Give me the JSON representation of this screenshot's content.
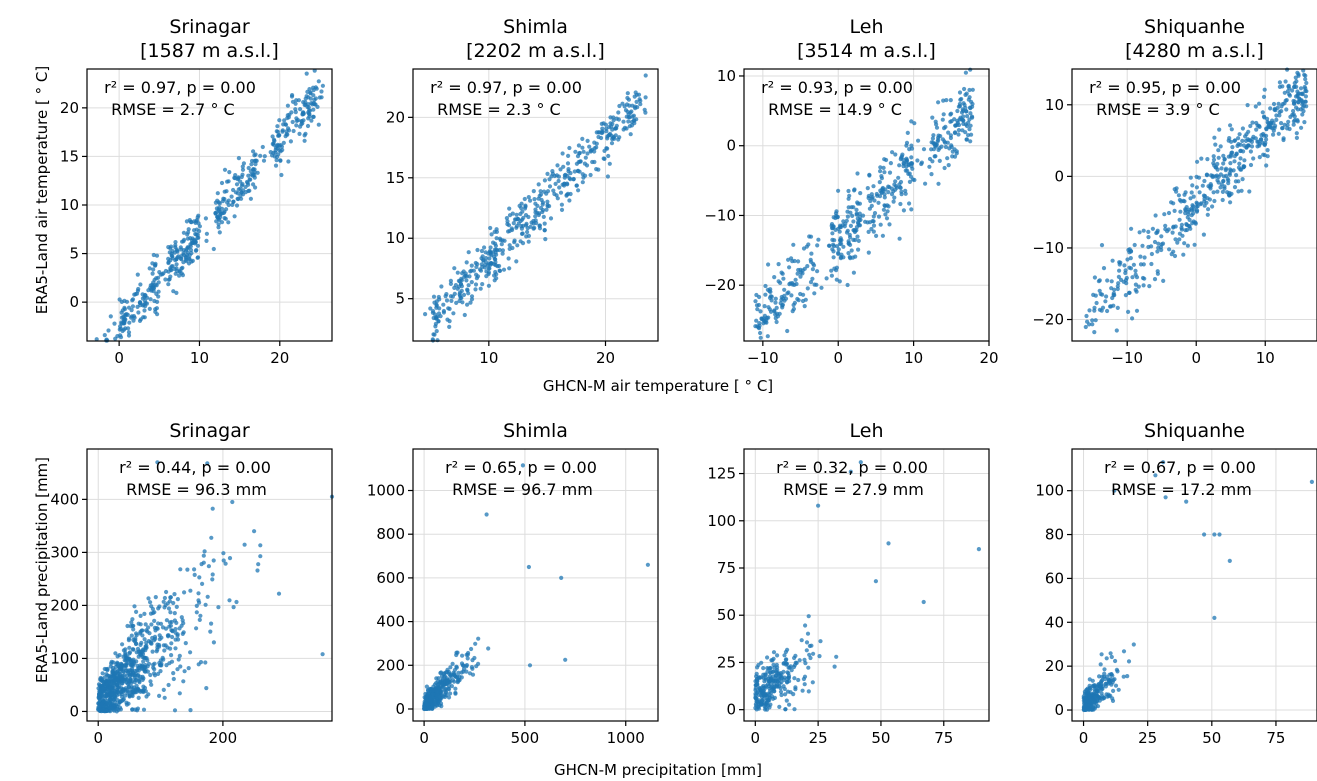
{
  "figure": {
    "temp_xlabel": "GHCN-M air temperature [ ° C]",
    "temp_ylabel": "ERA5-Land air temperature [ ° C]",
    "precip_xlabel": "GHCN-M precipitation [mm]",
    "precip_ylabel": "ERA5-Land precipitation [mm]",
    "marker_color": "#1f77b4",
    "grid": true
  },
  "chart_data": [
    {
      "type": "scatter",
      "row": "temperature",
      "title": "Srinagar",
      "subtitle": "[1587 m a.s.l.]",
      "stat_line1": "r² = 0.97, p = 0.00",
      "stat_line2": "RMSE = 2.7 ° C",
      "xlim": [
        -4,
        26.5
      ],
      "ylim": [
        -4,
        24
      ],
      "xticks": [
        0,
        10,
        20
      ],
      "yticks": [
        0,
        5,
        10,
        15,
        20
      ],
      "trend": {
        "x": [
          -3,
          25.5
        ],
        "slope": 0.95,
        "intercept": -2.4,
        "noise": 1.3,
        "n": 520,
        "clusters": [
          [
            0,
            5
          ],
          [
            6,
            10
          ],
          [
            12,
            17
          ],
          [
            19,
            25
          ]
        ]
      }
    },
    {
      "type": "scatter",
      "row": "temperature",
      "title": "Shimla",
      "subtitle": "[2202 m a.s.l.]",
      "stat_line1": "r² = 0.97, p = 0.00",
      "stat_line2": "RMSE = 2.3 ° C",
      "xlim": [
        3.5,
        24.5
      ],
      "ylim": [
        1.5,
        24
      ],
      "xticks": [
        10,
        20
      ],
      "yticks": [
        5,
        10,
        15,
        20
      ],
      "trend": {
        "x": [
          4.5,
          23.5
        ],
        "slope": 1.0,
        "intercept": -1.8,
        "noise": 1.1,
        "n": 480,
        "clusters": [
          [
            5,
            9
          ],
          [
            9,
            13
          ],
          [
            13,
            17
          ],
          [
            17,
            23
          ]
        ]
      }
    },
    {
      "type": "scatter",
      "row": "temperature",
      "title": "Leh",
      "subtitle": "[3514 m a.s.l.]",
      "stat_line1": "r² = 0.93, p = 0.00",
      "stat_line2": "RMSE = 14.9 ° C",
      "xlim": [
        -12.5,
        20
      ],
      "ylim": [
        -28,
        11
      ],
      "xticks": [
        -10,
        0,
        10,
        20
      ],
      "yticks": [
        -20,
        -10,
        0,
        10
      ],
      "trend": {
        "x": [
          -11,
          18
        ],
        "slope": 1.08,
        "intercept": -13.5,
        "noise": 2.6,
        "n": 520,
        "clusters": [
          [
            -11,
            -3
          ],
          [
            -1,
            3
          ],
          [
            4,
            10
          ],
          [
            12,
            18
          ]
        ]
      }
    },
    {
      "type": "scatter",
      "row": "temperature",
      "title": "Shiquanhe",
      "subtitle": "[4280 m a.s.l.]",
      "stat_line1": "r² = 0.95, p = 0.00",
      "stat_line2": "RMSE = 3.9 ° C",
      "xlim": [
        -18,
        17.5
      ],
      "ylim": [
        -23,
        15
      ],
      "xticks": [
        -10,
        0,
        10
      ],
      "yticks": [
        -20,
        -10,
        0,
        10
      ],
      "trend": {
        "x": [
          -16,
          16
        ],
        "slope": 1.02,
        "intercept": -3.6,
        "noise": 2.4,
        "n": 520,
        "clusters": [
          [
            -15,
            -4
          ],
          [
            -4,
            4
          ],
          [
            4,
            10
          ],
          [
            10,
            16
          ]
        ]
      }
    },
    {
      "type": "scatter",
      "row": "precipitation",
      "title": "Srinagar",
      "subtitle": "",
      "stat_line1": "r² = 0.44, p = 0.00",
      "stat_line2": "RMSE = 96.3 mm",
      "xlim": [
        -18,
        375
      ],
      "ylim": [
        -18,
        495
      ],
      "xticks": [
        0,
        200
      ],
      "yticks": [
        0,
        100,
        200,
        300,
        400
      ],
      "trend": {
        "x": [
          0,
          260
        ],
        "slope": 1.15,
        "intercept": 30,
        "noise": 70,
        "n": 750,
        "skew": 70,
        "extra": [
          [
            375,
            405
          ],
          [
            360,
            108
          ],
          [
            290,
            222
          ],
          [
            250,
            340
          ],
          [
            215,
            395
          ],
          [
            175,
            468
          ],
          [
            95,
            470
          ]
        ]
      }
    },
    {
      "type": "scatter",
      "row": "precipitation",
      "title": "Shimla",
      "subtitle": "",
      "stat_line1": "r² = 0.65, p = 0.00",
      "stat_line2": "RMSE = 96.7 mm",
      "xlim": [
        -55,
        1160
      ],
      "ylim": [
        -55,
        1190
      ],
      "xticks": [
        0,
        500,
        1000
      ],
      "yticks": [
        0,
        200,
        400,
        600,
        800,
        1000
      ],
      "trend": {
        "x": [
          0,
          700
        ],
        "slope": 0.95,
        "intercept": 20,
        "noise": 80,
        "n": 330,
        "skew": 90,
        "extra": [
          [
            1110,
            660
          ],
          [
            490,
            1115
          ],
          [
            310,
            890
          ],
          [
            700,
            225
          ],
          [
            525,
            200
          ],
          [
            680,
            600
          ],
          [
            520,
            650
          ]
        ]
      }
    },
    {
      "type": "scatter",
      "row": "precipitation",
      "title": "Leh",
      "subtitle": "",
      "stat_line1": "r² = 0.32, p = 0.00",
      "stat_line2": "RMSE = 27.9 mm",
      "xlim": [
        -4.5,
        93
      ],
      "ylim": [
        -6,
        138
      ],
      "xticks": [
        0,
        25,
        50,
        75
      ],
      "yticks": [
        0,
        25,
        50,
        75,
        100,
        125
      ],
      "trend": {
        "x": [
          0,
          55
        ],
        "slope": 0.9,
        "intercept": 15,
        "noise": 13,
        "n": 260,
        "skew": 10,
        "extra": [
          [
            89,
            85
          ],
          [
            67,
            57
          ],
          [
            53,
            88
          ],
          [
            42,
            131
          ],
          [
            48,
            68
          ],
          [
            38,
            126
          ],
          [
            25,
            108
          ]
        ]
      }
    },
    {
      "type": "scatter",
      "row": "precipitation",
      "title": "Shiquanhe",
      "subtitle": "",
      "stat_line1": "r² = 0.67, p = 0.00",
      "stat_line2": "RMSE = 17.2 mm",
      "xlim": [
        -4.5,
        91
      ],
      "ylim": [
        -5,
        119
      ],
      "xticks": [
        0,
        25,
        50,
        75
      ],
      "yticks": [
        0,
        20,
        40,
        60,
        80,
        100
      ],
      "trend": {
        "x": [
          0,
          55
        ],
        "slope": 1.1,
        "intercept": 4,
        "noise": 10,
        "n": 230,
        "skew": 6,
        "extra": [
          [
            89,
            104
          ],
          [
            51,
            80
          ],
          [
            53,
            80
          ],
          [
            57,
            68
          ],
          [
            51,
            42
          ],
          [
            47,
            80
          ],
          [
            31,
            113
          ],
          [
            28,
            107
          ],
          [
            12,
            100
          ],
          [
            40,
            95
          ],
          [
            32,
            97
          ]
        ]
      }
    }
  ]
}
